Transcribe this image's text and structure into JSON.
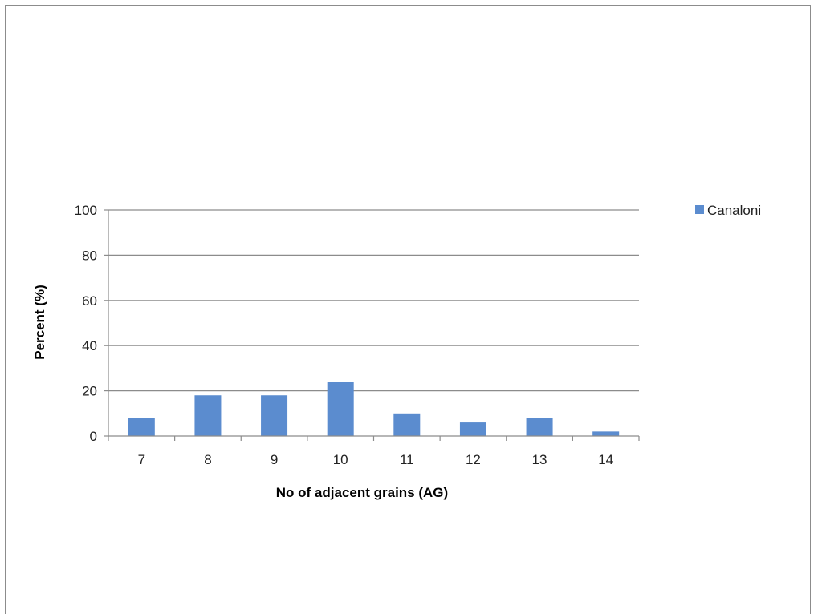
{
  "chart_data": {
    "type": "bar",
    "title": "",
    "xlabel": "No of adjacent grains (AG)",
    "ylabel": "Percent (%)",
    "categories": [
      "7",
      "8",
      "9",
      "10",
      "11",
      "12",
      "13",
      "14"
    ],
    "series": [
      {
        "name": "Canaloni",
        "values": [
          8,
          18,
          18,
          24,
          10,
          6,
          8,
          2
        ],
        "color": "#5b8ccf"
      }
    ],
    "ylim": [
      0,
      100
    ],
    "yticks": [
      "0",
      "20",
      "40",
      "60",
      "80",
      "100"
    ],
    "grid": true,
    "legend_position": "top-right"
  }
}
